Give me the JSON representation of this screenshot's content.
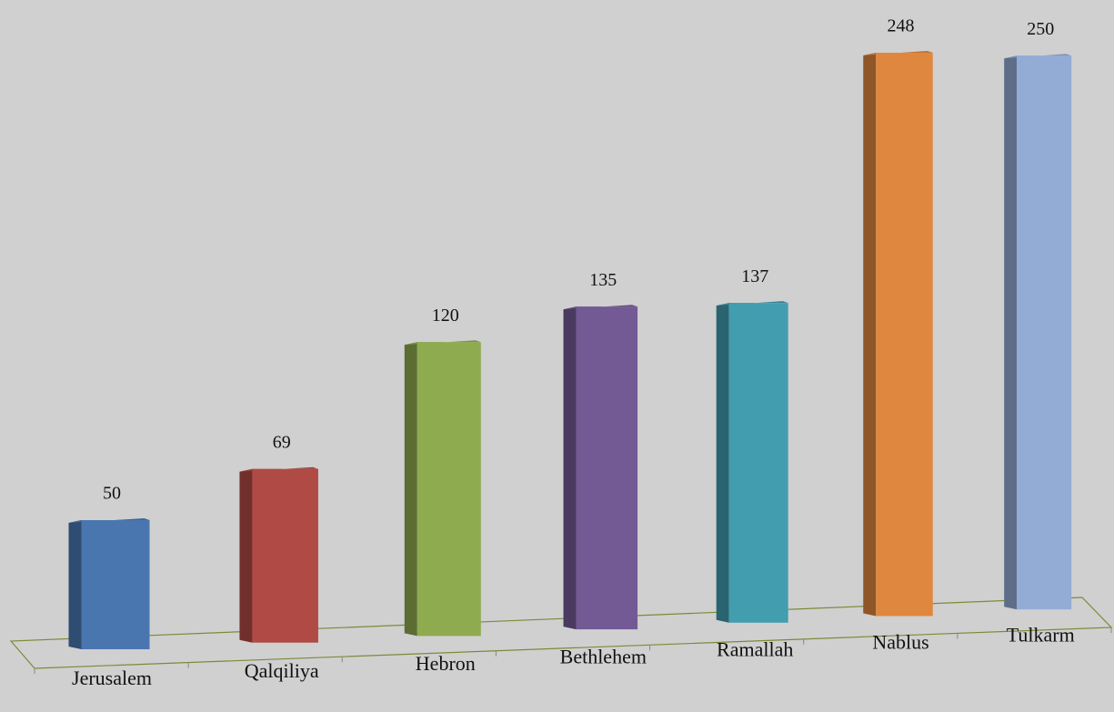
{
  "chart_data": {
    "type": "bar3d",
    "categories": [
      "Jerusalem",
      "Qalqiliya",
      "Hebron",
      "Bethlehem",
      "Ramallah",
      "Nablus",
      "Tulkarm"
    ],
    "values": [
      50,
      69,
      120,
      135,
      137,
      248,
      250
    ],
    "colors": [
      "#4a76b0",
      "#b04a45",
      "#8eab4f",
      "#735a94",
      "#429daf",
      "#e0873f",
      "#93acd6"
    ]
  }
}
